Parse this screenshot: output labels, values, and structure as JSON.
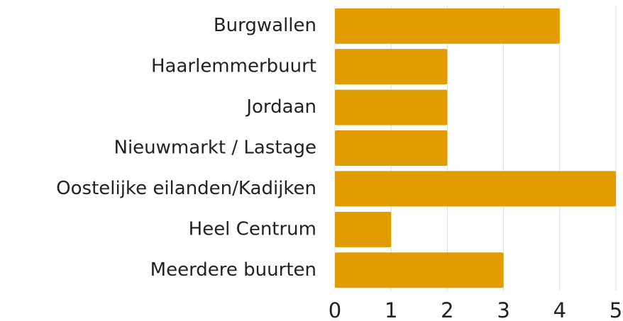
{
  "chart_data": {
    "type": "bar",
    "orientation": "horizontal",
    "categories": [
      "Burgwallen",
      "Haarlemmerbuurt",
      "Jordaan",
      "Nieuwmarkt / Lastage",
      "Oostelijke eilanden/Kadijken",
      "Heel Centrum",
      "Meerdere buurten"
    ],
    "values": [
      4,
      2,
      2,
      2,
      5,
      1,
      3
    ],
    "color": "#e09c00",
    "xlim": [
      0,
      5
    ],
    "xticks": [
      0,
      1,
      2,
      3,
      4,
      5
    ],
    "grid": true
  }
}
